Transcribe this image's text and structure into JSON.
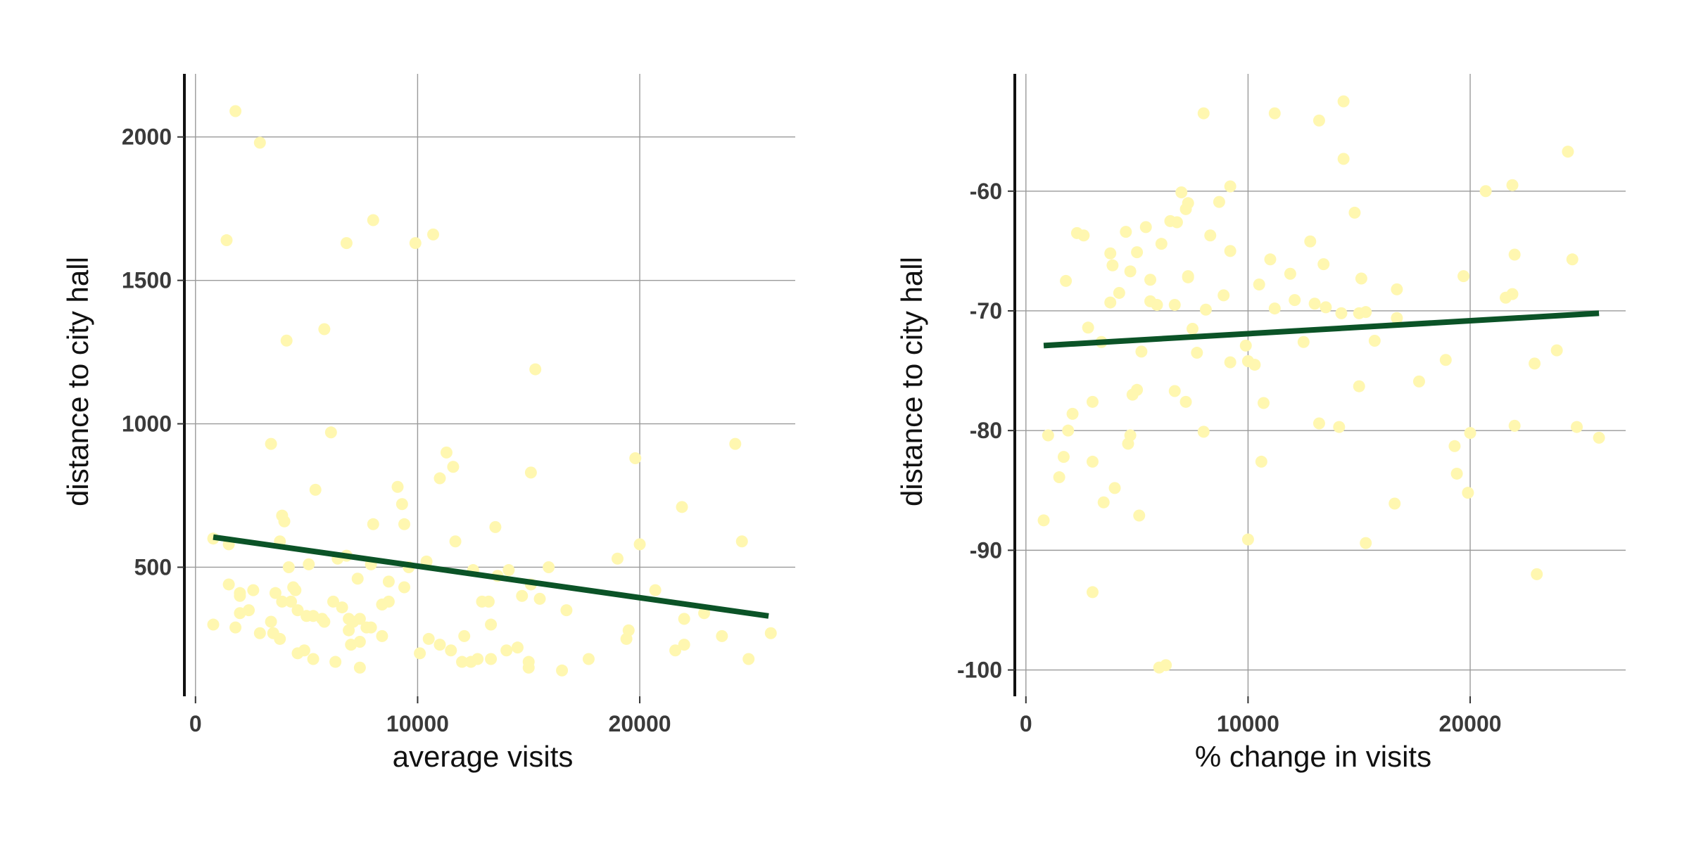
{
  "colors": {
    "points": "#fff7b0",
    "trend": "#0b5327",
    "grid": "#9a9a9a",
    "axis": "#111111",
    "background": "#ffffff"
  },
  "chart_data": [
    {
      "type": "scatter",
      "xlabel": "average visits",
      "ylabel": "distance to city hall",
      "xlim": [
        -500,
        27000
      ],
      "ylim": [
        50,
        2220
      ],
      "xticks": [
        0,
        10000,
        20000
      ],
      "xtick_labels": [
        "0",
        "10000",
        "20000"
      ],
      "yticks": [
        500,
        1000,
        1500,
        2000
      ],
      "ytick_labels": [
        "500",
        "1000",
        "1500",
        "2000"
      ],
      "grid": true,
      "legend": "none",
      "trendline": {
        "x": [
          800,
          25800
        ],
        "y": [
          605,
          330
        ]
      },
      "x": [
        1800,
        2900,
        1400,
        8000,
        10700,
        6800,
        9900,
        5800,
        4100,
        15300,
        3400,
        6100,
        24300,
        19800,
        9100,
        11600,
        11300,
        15100,
        21900,
        5400,
        9300,
        3900,
        4000,
        8000,
        13500,
        11000,
        24600,
        1500,
        20000,
        3800,
        6800,
        800,
        4200,
        12500,
        2000,
        6400,
        9600,
        15900,
        19000,
        10400,
        11700,
        7300,
        7900,
        3600,
        4500,
        5100,
        9400,
        13600,
        8700,
        4400,
        6200,
        3900,
        2400,
        1500,
        2000,
        12900,
        2000,
        15100,
        15500,
        20700,
        6600,
        14700,
        5300,
        8400,
        5700,
        4600,
        5000,
        22000,
        22900,
        13200,
        2600,
        3400,
        7400,
        7100,
        16700,
        19500,
        800,
        7900,
        1800,
        6900,
        2900,
        3800,
        13300,
        23700,
        25900,
        19400,
        14500,
        11000,
        12100,
        10500,
        7000,
        7400,
        22000,
        21600,
        4900,
        10100,
        14000,
        4600,
        17700,
        6300,
        7400,
        12700,
        15000,
        16500,
        5300,
        13300,
        15000,
        24900,
        12000,
        12400,
        3500,
        8400,
        7700,
        5800,
        4300,
        6900,
        8700,
        11500,
        14100,
        9400
      ],
      "y": [
        2090,
        1980,
        1640,
        1710,
        1660,
        1630,
        1630,
        1330,
        1290,
        1190,
        930,
        970,
        930,
        880,
        780,
        850,
        900,
        830,
        710,
        770,
        720,
        680,
        660,
        650,
        640,
        810,
        590,
        580,
        580,
        590,
        540,
        600,
        500,
        490,
        410,
        530,
        500,
        500,
        530,
        520,
        590,
        460,
        510,
        410,
        420,
        510,
        430,
        470,
        380,
        430,
        380,
        380,
        350,
        440,
        400,
        380,
        340,
        440,
        390,
        420,
        360,
        400,
        330,
        370,
        320,
        350,
        330,
        320,
        340,
        380,
        420,
        310,
        320,
        310,
        350,
        280,
        300,
        290,
        290,
        280,
        270,
        250,
        300,
        260,
        270,
        250,
        220,
        230,
        260,
        250,
        230,
        240,
        230,
        210,
        210,
        200,
        210,
        200,
        180,
        170,
        150,
        180,
        170,
        140,
        180,
        180,
        150,
        180,
        170,
        170,
        270,
        260,
        290,
        310,
        380,
        320,
        450,
        210,
        490,
        650
      ]
    },
    {
      "type": "scatter",
      "xlabel": "% change in visits",
      "ylabel": "distance to city hall",
      "xlim": [
        -500,
        27000
      ],
      "ylim": [
        -102.2,
        -50.2
      ],
      "xticks": [
        0,
        10000,
        20000
      ],
      "xtick_labels": [
        "0",
        "10000",
        "20000"
      ],
      "yticks": [
        -100,
        -90,
        -80,
        -70,
        -60
      ],
      "ytick_labels": [
        "-100",
        "-90",
        "-80",
        "-70",
        "-60"
      ],
      "grid": true,
      "legend": "none",
      "trendline": {
        "x": [
          800,
          25800
        ],
        "y": [
          -72.9,
          -70.2
        ]
      },
      "x": [
        8000,
        11200,
        14300,
        13200,
        24400,
        14300,
        9200,
        7000,
        7300,
        8700,
        2300,
        5400,
        2600,
        4500,
        6800,
        6500,
        8300,
        3800,
        5000,
        3900,
        6100,
        9200,
        1800,
        7300,
        11000,
        13400,
        12800,
        15100,
        20700,
        21900,
        24600,
        22000,
        5600,
        4200,
        4700,
        7300,
        12100,
        10500,
        3800,
        6700,
        8900,
        5600,
        15000,
        16700,
        5900,
        11200,
        13000,
        13500,
        21600,
        21900,
        7500,
        8100,
        2800,
        15300,
        14200,
        10000,
        3400,
        5200,
        7700,
        9200,
        15700,
        19700,
        17700,
        12500,
        10300,
        5000,
        4800,
        7200,
        4700,
        6700,
        10600,
        9900,
        2100,
        1000,
        16600,
        13200,
        23900,
        22900,
        19300,
        18900,
        14100,
        8000,
        4600,
        1900,
        1700,
        22000,
        24800,
        25800,
        1500,
        3000,
        20000,
        19400,
        10700,
        4000,
        15000,
        3500,
        19900,
        10000,
        5100,
        16700,
        3000,
        23000,
        15300,
        800,
        3000,
        6000,
        6300,
        7200,
        11900,
        14800
      ],
      "y": [
        -53.5,
        -53.5,
        -52.5,
        -54.1,
        -56.7,
        -57.3,
        -59.6,
        -60.1,
        -61,
        -60.9,
        -63.5,
        -63,
        -63.7,
        -63.4,
        -62.6,
        -62.5,
        -63.7,
        -65.2,
        -65.1,
        -66.2,
        -64.4,
        -65,
        -67.5,
        -67.1,
        -65.7,
        -66.1,
        -64.2,
        -67.3,
        -60,
        -59.5,
        -65.7,
        -65.3,
        -67.4,
        -68.5,
        -66.7,
        -67.2,
        -69.1,
        -67.8,
        -69.3,
        -69.5,
        -68.7,
        -69.2,
        -70.2,
        -68.2,
        -69.5,
        -69.8,
        -69.4,
        -69.7,
        -68.9,
        -68.6,
        -71.5,
        -69.9,
        -71.4,
        -70.1,
        -70.2,
        -74.2,
        -72.6,
        -73.4,
        -73.5,
        -74.3,
        -72.5,
        -67.1,
        -75.9,
        -72.6,
        -74.5,
        -76.6,
        -77,
        -77.6,
        -80.4,
        -76.7,
        -82.6,
        -72.9,
        -78.6,
        -80.4,
        -86.1,
        -79.4,
        -73.3,
        -74.4,
        -81.3,
        -74.1,
        -79.7,
        -80.1,
        -81.1,
        -80,
        -82.2,
        -79.6,
        -79.7,
        -80.6,
        -83.9,
        -77.6,
        -80.2,
        -83.6,
        -77.7,
        -84.8,
        -76.3,
        -86,
        -85.2,
        -89.1,
        -87.1,
        -70.6,
        -82.6,
        -92,
        -89.4,
        -87.5,
        -93.5,
        -99.8,
        -99.6,
        -61.5,
        -66.9,
        -61.8
      ]
    }
  ]
}
